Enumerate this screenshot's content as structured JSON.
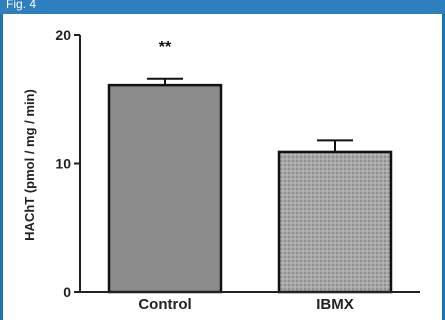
{
  "header": {
    "title": "Fig. 4"
  },
  "chart_data": {
    "type": "bar",
    "categories": [
      "Control",
      "IBMX"
    ],
    "values": [
      16.1,
      10.9
    ],
    "errors": [
      0.5,
      0.9
    ],
    "annotations": [
      {
        "category": "Control",
        "text": "**"
      }
    ],
    "title": "",
    "xlabel": "",
    "ylabel": "HAChT (pmol / mg / min)",
    "ylim": [
      0,
      20
    ],
    "yticks": [
      0,
      10,
      20
    ],
    "bar_colors": [
      "#8c8c8c",
      "#a6a6a6"
    ],
    "bar_fill_patterns": [
      "solid",
      "dotted"
    ],
    "grid": false,
    "legend": "none"
  }
}
